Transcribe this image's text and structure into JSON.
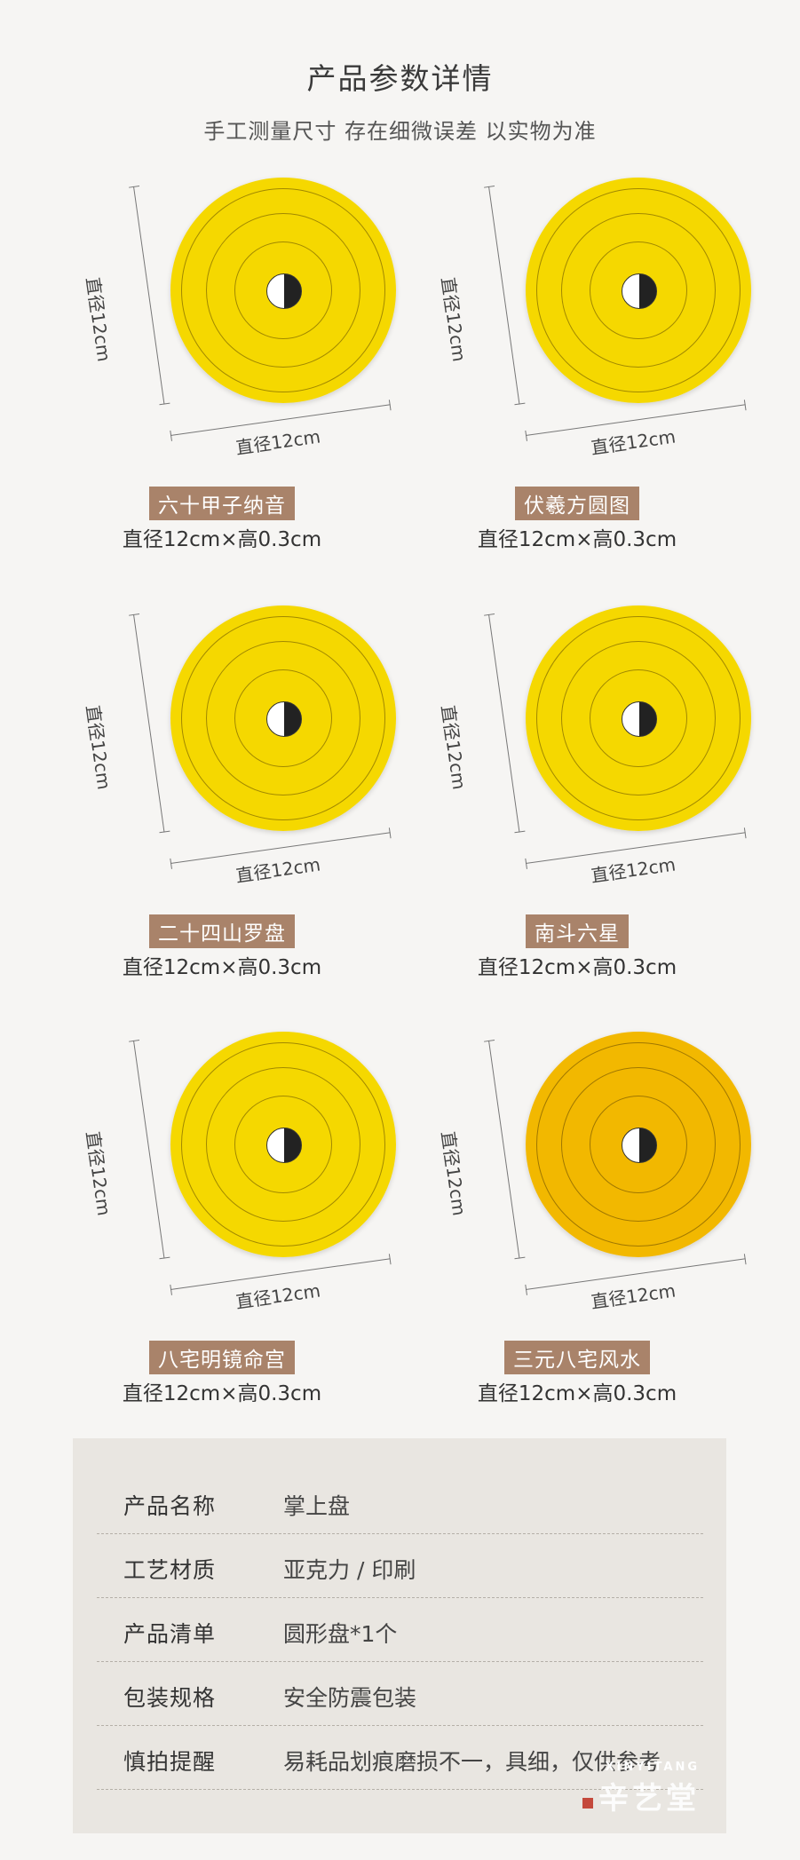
{
  "header": {
    "title": "产品参数详情",
    "subtitle": "手工测量尺寸 存在细微误差 以实物为准"
  },
  "dimension_label": "直径12cm",
  "products": [
    {
      "name": "六十甲子纳音",
      "spec": "直径12cm×高0.3cm",
      "disc_color": "#f5d800"
    },
    {
      "name": "伏羲方圆图",
      "spec": "直径12cm×高0.3cm",
      "disc_color": "#f5d800"
    },
    {
      "name": "二十四山罗盘",
      "spec": "直径12cm×高0.3cm",
      "disc_color": "#f5d800"
    },
    {
      "name": "南斗六星",
      "spec": "直径12cm×高0.3cm",
      "disc_color": "#f5d800"
    },
    {
      "name": "八宅明镜命宫",
      "spec": "直径12cm×高0.3cm",
      "disc_color": "#f5d800"
    },
    {
      "name": "三元八宅风水",
      "spec": "直径12cm×高0.3cm",
      "disc_color": "#f2b800"
    }
  ],
  "table": [
    {
      "key": "产品名称",
      "value": "掌上盘"
    },
    {
      "key": "工艺材质",
      "value": "亚克力 / 印刷"
    },
    {
      "key": "产品清单",
      "value": "圆形盘*1个"
    },
    {
      "key": "包装规格",
      "value": "安全防震包装"
    },
    {
      "key": "慎拍提醒",
      "value": "易耗品划痕磨损不一，具细，仅供参考"
    }
  ],
  "logo": {
    "en": "XINYITANG",
    "cn": "辛艺堂"
  },
  "colors": {
    "tag_bg": "#a9836a",
    "background": "#f6f5f3",
    "table_bg": "#e9e6e1"
  }
}
